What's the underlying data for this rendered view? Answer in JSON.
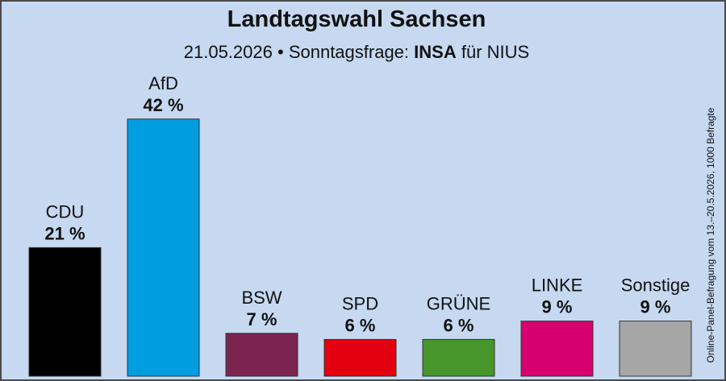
{
  "header": {
    "title": "Landtagswahl Sachsen",
    "date": "21.05.2026",
    "separator": "•",
    "survey_label": "Sonntagsfrage:",
    "institute": "INSA",
    "client_prefix": "für",
    "client": "NIUS"
  },
  "source_note": "Online-Panel-Befragung vom 13.–20.5.2026, 1000 Befragte",
  "chart_data": {
    "type": "bar",
    "title": "Landtagswahl Sachsen",
    "subtitle": "21.05.2026 • Sonntagsfrage: INSA für NIUS",
    "categories": [
      "CDU",
      "AfD",
      "BSW",
      "SPD",
      "GRÜNE",
      "LINKE",
      "Sonstige"
    ],
    "values": [
      21,
      42,
      7,
      6,
      6,
      9,
      9
    ],
    "value_labels": [
      "21 %",
      "42 %",
      "7 %",
      "6 %",
      "6 %",
      "9 %",
      "9 %"
    ],
    "colors": [
      "#000000",
      "#009ee0",
      "#7b2450",
      "#e3000f",
      "#46962b",
      "#d6006f",
      "#a6a6a6"
    ],
    "unit": "%",
    "ylim": [
      0,
      45
    ],
    "grid": false,
    "legend": "none",
    "xlabel": "",
    "ylabel": ""
  }
}
